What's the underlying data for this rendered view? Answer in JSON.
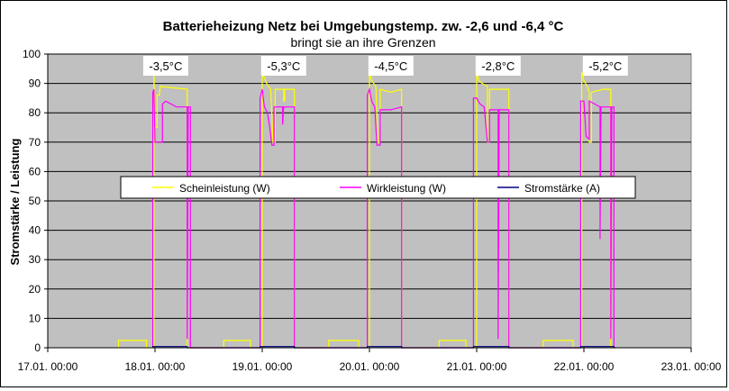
{
  "chart_data": {
    "type": "line",
    "title": "Batterieheizung Netz bei Umgebungstemp. zw. -2,6 und -6,4 °C",
    "subtitle": "bringt sie an ihre Grenzen",
    "ylabel": "Stromstärke / Leistung",
    "xlabel": "",
    "ylim": [
      0,
      100
    ],
    "y_ticks": [
      0,
      10,
      20,
      30,
      40,
      50,
      60,
      70,
      80,
      90,
      100
    ],
    "x_tick_labels": [
      "17.01. 00:00",
      "18.01. 00:00",
      "19.01. 00:00",
      "20.01. 00:00",
      "21.01. 00:00",
      "22.01. 00:00",
      "23.01. 00:00"
    ],
    "grid": true,
    "legend_position": "center",
    "plot_background": "#c0c0c0",
    "annotations": [
      {
        "day": 1.1,
        "text": "-3,5°C"
      },
      {
        "day": 2.2,
        "text": "-5,3°C"
      },
      {
        "day": 3.2,
        "text": "-4,5°C"
      },
      {
        "day": 4.2,
        "text": "-2,8°C"
      },
      {
        "day": 5.2,
        "text": "-5,2°C"
      }
    ],
    "series": [
      {
        "name": "Scheinleistung (W)",
        "color": "#ffff00",
        "points": [
          [
            0.66,
            0
          ],
          [
            0.66,
            2.5
          ],
          [
            0.92,
            2.5
          ],
          [
            0.92,
            0
          ],
          [
            0.99,
            0
          ],
          [
            0.99,
            94
          ],
          [
            1.0,
            75
          ],
          [
            1.02,
            75
          ],
          [
            1.02,
            86
          ],
          [
            1.04,
            86
          ],
          [
            1.05,
            89
          ],
          [
            1.3,
            88
          ],
          [
            1.3,
            0
          ],
          [
            1.32,
            0
          ],
          [
            1.64,
            0
          ],
          [
            1.64,
            2.5
          ],
          [
            1.89,
            2.5
          ],
          [
            1.89,
            0
          ],
          [
            2.0,
            0
          ],
          [
            2.0,
            93
          ],
          [
            2.02,
            92
          ],
          [
            2.04,
            90
          ],
          [
            2.06,
            89
          ],
          [
            2.08,
            88
          ],
          [
            2.1,
            70
          ],
          [
            2.12,
            70
          ],
          [
            2.12,
            88
          ],
          [
            2.2,
            88
          ],
          [
            2.2,
            84
          ],
          [
            2.21,
            84
          ],
          [
            2.21,
            88
          ],
          [
            2.3,
            88
          ],
          [
            2.3,
            0
          ],
          [
            2.33,
            0
          ],
          [
            2.62,
            0
          ],
          [
            2.62,
            2.5
          ],
          [
            2.9,
            2.5
          ],
          [
            2.9,
            0
          ],
          [
            3.0,
            0
          ],
          [
            3.0,
            94
          ],
          [
            3.02,
            91
          ],
          [
            3.06,
            89
          ],
          [
            3.08,
            70
          ],
          [
            3.1,
            70
          ],
          [
            3.1,
            88
          ],
          [
            3.2,
            87
          ],
          [
            3.3,
            88
          ],
          [
            3.3,
            0
          ],
          [
            3.33,
            0
          ],
          [
            3.65,
            0
          ],
          [
            3.65,
            2.5
          ],
          [
            3.9,
            2.5
          ],
          [
            3.9,
            0
          ],
          [
            4.0,
            0
          ],
          [
            4.0,
            94
          ],
          [
            4.02,
            91
          ],
          [
            4.05,
            90
          ],
          [
            4.1,
            89
          ],
          [
            4.1,
            70
          ],
          [
            4.12,
            70
          ],
          [
            4.12,
            88
          ],
          [
            4.3,
            88
          ],
          [
            4.3,
            0
          ],
          [
            4.33,
            0
          ],
          [
            4.62,
            0
          ],
          [
            4.62,
            2.5
          ],
          [
            4.9,
            2.5
          ],
          [
            4.9,
            0
          ],
          [
            4.98,
            0
          ],
          [
            4.98,
            94
          ],
          [
            5.0,
            91
          ],
          [
            5.03,
            89
          ],
          [
            5.05,
            87
          ],
          [
            5.05,
            70
          ],
          [
            5.07,
            70
          ],
          [
            5.07,
            87
          ],
          [
            5.18,
            88
          ],
          [
            5.25,
            88
          ],
          [
            5.25,
            0
          ],
          [
            5.3,
            0
          ]
        ]
      },
      {
        "name": "Wirkleistung (W)",
        "color": "#ff00ff",
        "points": [
          [
            0.98,
            0
          ],
          [
            0.98,
            87
          ],
          [
            0.99,
            88
          ],
          [
            1.0,
            70
          ],
          [
            1.07,
            70
          ],
          [
            1.07,
            83
          ],
          [
            1.1,
            84
          ],
          [
            1.2,
            82
          ],
          [
            1.3,
            82
          ],
          [
            1.3,
            3
          ],
          [
            1.31,
            82
          ],
          [
            1.33,
            82
          ],
          [
            1.33,
            0
          ],
          [
            1.98,
            0
          ],
          [
            1.98,
            85
          ],
          [
            2.0,
            88
          ],
          [
            2.02,
            82
          ],
          [
            2.05,
            80
          ],
          [
            2.07,
            75
          ],
          [
            2.09,
            69
          ],
          [
            2.11,
            69
          ],
          [
            2.11,
            82
          ],
          [
            2.19,
            82
          ],
          [
            2.19,
            76
          ],
          [
            2.2,
            82
          ],
          [
            2.3,
            82
          ],
          [
            2.3,
            0
          ],
          [
            2.33,
            0
          ],
          [
            2.98,
            0
          ],
          [
            2.98,
            86
          ],
          [
            3.0,
            88
          ],
          [
            3.02,
            84
          ],
          [
            3.05,
            82
          ],
          [
            3.07,
            69
          ],
          [
            3.1,
            69
          ],
          [
            3.1,
            81
          ],
          [
            3.2,
            81
          ],
          [
            3.3,
            82
          ],
          [
            3.3,
            0
          ],
          [
            3.33,
            0
          ],
          [
            3.97,
            0
          ],
          [
            3.97,
            85
          ],
          [
            4.0,
            85
          ],
          [
            4.03,
            83
          ],
          [
            4.07,
            82
          ],
          [
            4.1,
            70
          ],
          [
            4.12,
            70
          ],
          [
            4.12,
            81
          ],
          [
            4.2,
            81
          ],
          [
            4.2,
            3
          ],
          [
            4.21,
            81
          ],
          [
            4.3,
            81
          ],
          [
            4.3,
            0
          ],
          [
            4.33,
            0
          ],
          [
            4.97,
            0
          ],
          [
            4.97,
            84
          ],
          [
            5.0,
            84
          ],
          [
            5.02,
            72
          ],
          [
            5.05,
            71
          ],
          [
            5.05,
            84
          ],
          [
            5.1,
            83
          ],
          [
            5.15,
            82
          ],
          [
            5.15,
            37
          ],
          [
            5.16,
            82
          ],
          [
            5.25,
            82
          ],
          [
            5.25,
            3
          ],
          [
            5.26,
            82
          ],
          [
            5.28,
            82
          ],
          [
            5.28,
            0
          ],
          [
            5.3,
            0
          ]
        ]
      },
      {
        "name": "Stromstärke (A)",
        "color": "#000080",
        "points": [
          [
            0.98,
            0
          ],
          [
            0.98,
            0.4
          ],
          [
            1.3,
            0.4
          ],
          [
            1.3,
            0
          ],
          [
            1.98,
            0
          ],
          [
            1.98,
            0.4
          ],
          [
            2.3,
            0.4
          ],
          [
            2.3,
            0
          ],
          [
            2.98,
            0
          ],
          [
            2.98,
            0.4
          ],
          [
            3.3,
            0.4
          ],
          [
            3.3,
            0
          ],
          [
            3.97,
            0
          ],
          [
            3.97,
            0.4
          ],
          [
            4.3,
            0.4
          ],
          [
            4.3,
            0
          ],
          [
            4.97,
            0
          ],
          [
            4.97,
            0.4
          ],
          [
            5.28,
            0.4
          ],
          [
            5.28,
            0
          ]
        ]
      }
    ]
  }
}
